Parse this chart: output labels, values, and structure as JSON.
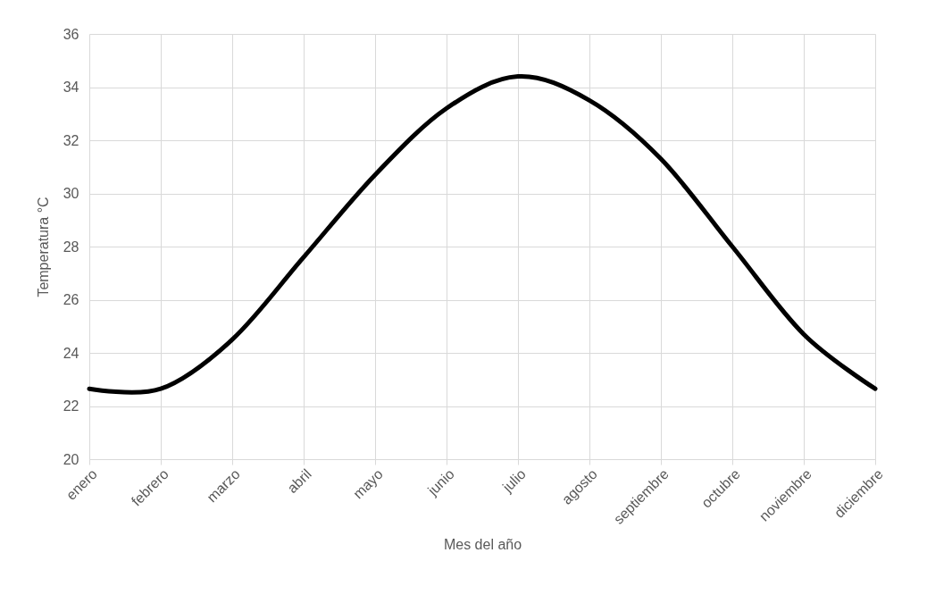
{
  "chart_data": {
    "type": "line",
    "xlabel": "Mes del año",
    "ylabel": "Temperatura °C",
    "categories": [
      "enero",
      "febrero",
      "marzo",
      "abril",
      "mayo",
      "junio",
      "julio",
      "agosto",
      "septiembre",
      "octubre",
      "noviembre",
      "diciembre"
    ],
    "series": [
      {
        "color": "#000000",
        "values": [
          22.65,
          22.65,
          24.5,
          27.6,
          30.7,
          33.2,
          34.4,
          33.5,
          31.3,
          28.0,
          24.7,
          22.65
        ]
      }
    ],
    "ylim": [
      20,
      36
    ],
    "yticks": [
      20,
      22,
      24,
      26,
      28,
      30,
      32,
      34,
      36
    ],
    "grid": true,
    "marker": "none",
    "line_style": "solid"
  }
}
